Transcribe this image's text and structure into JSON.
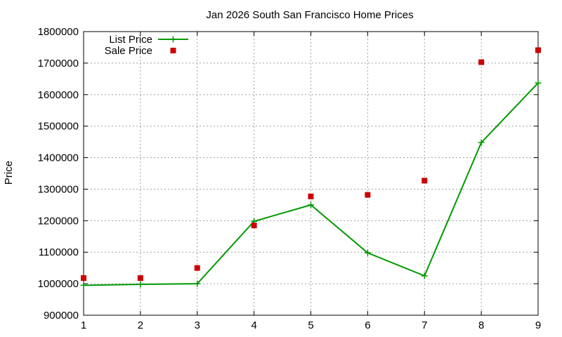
{
  "chart_data": {
    "type": "line",
    "title": "Jan 2026 South San Francisco Home Prices",
    "xlabel": "",
    "ylabel": "Price",
    "xlim": [
      1,
      9
    ],
    "ylim": [
      900000,
      1800000
    ],
    "x_ticks": [
      "1",
      "2",
      "3",
      "4",
      "5",
      "6",
      "7",
      "8",
      "9"
    ],
    "y_ticks": [
      "900000",
      "1000000",
      "1100000",
      "1200000",
      "1300000",
      "1400000",
      "1500000",
      "1600000",
      "1700000",
      "1800000"
    ],
    "grid": true,
    "legend_position": "top-left",
    "x": [
      1,
      2,
      3,
      4,
      5,
      6,
      7,
      8,
      9
    ],
    "series": [
      {
        "name": "List Price",
        "style": "linespoints",
        "marker": "plus",
        "color": "#009900",
        "values": [
          995000,
          998000,
          1000000,
          1198000,
          1250000,
          1098000,
          1025000,
          1448000,
          1637000
        ]
      },
      {
        "name": "Sale Price",
        "style": "points",
        "marker": "square",
        "color": "#cc0000",
        "values": [
          1018000,
          1018000,
          1050000,
          1185000,
          1277000,
          1282000,
          1327000,
          1703000,
          1741000
        ]
      }
    ]
  }
}
